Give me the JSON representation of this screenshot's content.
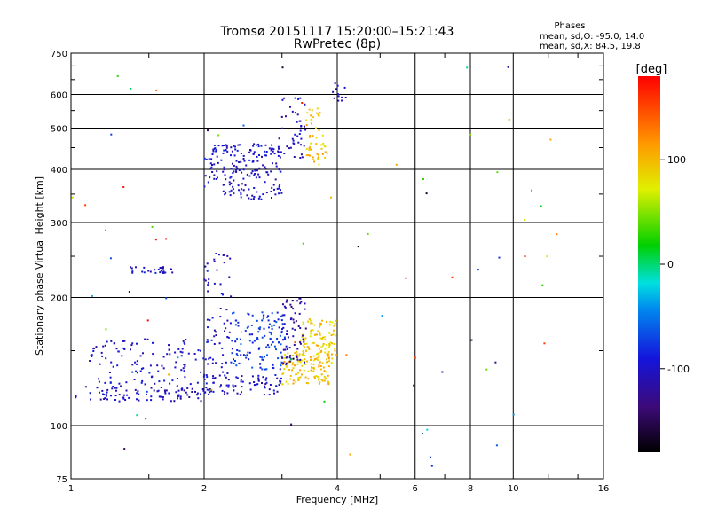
{
  "chart_data": {
    "type": "scatter",
    "title": "Tromsø 20151117 15:20:00–15:21:43",
    "subtitle": "RwPretec (8p)",
    "xlabel": "Frequency [MHz]",
    "ylabel": "Stationary phase Virtual Height [km]",
    "x_scale": "log",
    "y_scale": "log",
    "xlim": [
      1,
      16
    ],
    "ylim": [
      75,
      750
    ],
    "x_ticks": [
      1,
      2,
      4,
      6,
      8,
      10,
      16
    ],
    "y_ticks": [
      75,
      100,
      200,
      300,
      400,
      500,
      600,
      750
    ],
    "grid": true,
    "stats": {
      "heading": "Phases",
      "line_o": "mean, sd,O: -95.0, 14.0",
      "line_x": "mean, sd,X:  84.5, 19.8"
    },
    "colorbar": {
      "label": "[deg]",
      "range": [
        -180,
        180
      ],
      "ticks": [
        -100,
        0,
        100
      ]
    },
    "clusters": [
      {
        "f": [
          1.02,
          2.0
        ],
        "h": [
          114,
          124
        ],
        "phase": -105,
        "n": 90
      },
      {
        "f": [
          2.0,
          3.0
        ],
        "h": [
          118,
          132
        ],
        "phase": -100,
        "n": 80
      },
      {
        "f": [
          3.0,
          3.9
        ],
        "h": [
          125,
          150
        ],
        "phase": 95,
        "n": 120
      },
      {
        "f": [
          3.3,
          4.0
        ],
        "h": [
          140,
          178
        ],
        "phase": 90,
        "n": 90
      },
      {
        "f": [
          1.1,
          2.0
        ],
        "h": [
          125,
          160
        ],
        "phase": -100,
        "n": 110
      },
      {
        "f": [
          2.0,
          2.3
        ],
        "h": [
          130,
          260
        ],
        "phase": -100,
        "n": 70
      },
      {
        "f": [
          2.3,
          3.1
        ],
        "h": [
          135,
          185
        ],
        "phase": -75,
        "n": 130
      },
      {
        "f": [
          3.0,
          3.4
        ],
        "h": [
          140,
          200
        ],
        "phase": -120,
        "n": 60
      },
      {
        "f": [
          1.35,
          1.7
        ],
        "h": [
          228,
          236
        ],
        "phase": -100,
        "n": 28
      },
      {
        "f": [
          2.0,
          3.0
        ],
        "h": [
          340,
          460
        ],
        "phase": -100,
        "n": 200
      },
      {
        "f": [
          3.0,
          3.4
        ],
        "h": [
          420,
          600
        ],
        "phase": -105,
        "n": 40
      },
      {
        "f": [
          3.4,
          3.8
        ],
        "h": [
          410,
          560
        ],
        "phase": 95,
        "n": 50
      },
      {
        "f": [
          3.9,
          4.2
        ],
        "h": [
          560,
          640
        ],
        "phase": -105,
        "n": 12
      },
      {
        "f": [
          1.0,
          13.0
        ],
        "h": [
          80,
          700
        ],
        "phase": 0,
        "n": 80,
        "scatter": true
      }
    ]
  }
}
